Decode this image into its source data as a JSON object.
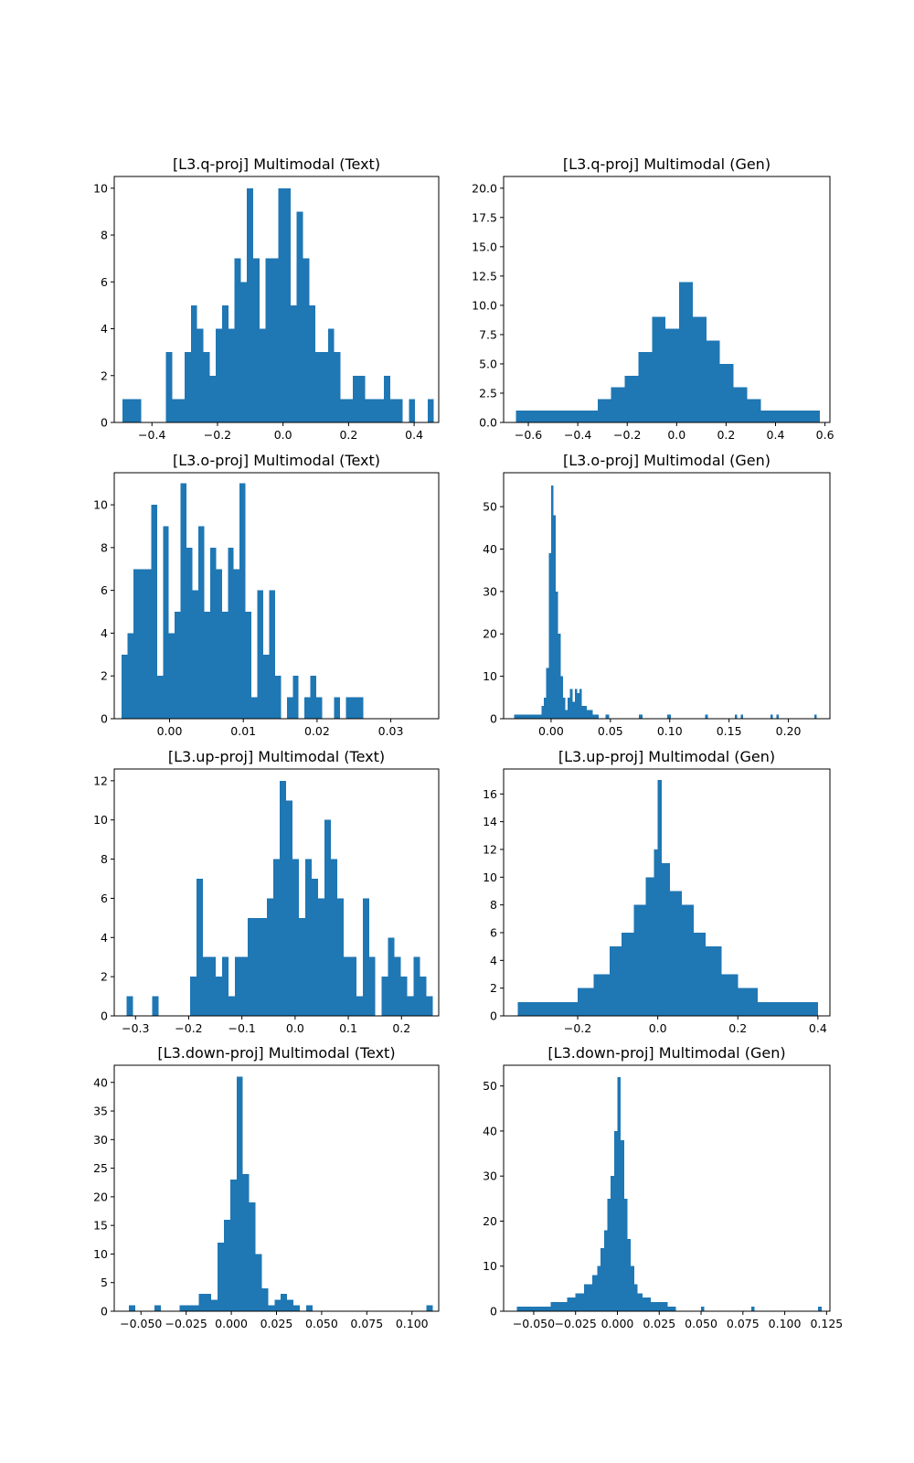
{
  "figure": {
    "bar_color": "#1f77b4",
    "background": "#ffffff"
  },
  "chart_data": [
    {
      "type": "bar",
      "title": "[L3.q-proj] Multimodal (Text)",
      "xlabel": "",
      "ylabel": "",
      "xlim": [
        -0.515,
        0.475
      ],
      "ylim": [
        0,
        10.5
      ],
      "xticks": [
        -0.4,
        -0.2,
        0.0,
        0.2,
        0.4
      ],
      "xtick_labels": [
        "−0.4",
        "−0.2",
        "0.0",
        "0.2",
        "0.4"
      ],
      "yticks": [
        0,
        2,
        4,
        6,
        8,
        10
      ],
      "ytick_labels": [
        "0",
        "2",
        "4",
        "6",
        "8",
        "10"
      ],
      "bin_edges": [
        -0.49,
        -0.471,
        -0.452,
        -0.433,
        -0.414,
        -0.395,
        -0.376,
        -0.357,
        -0.338,
        -0.319,
        -0.3,
        -0.281,
        -0.262,
        -0.243,
        -0.224,
        -0.205,
        -0.186,
        -0.167,
        -0.148,
        -0.129,
        -0.11,
        -0.091,
        -0.072,
        -0.053,
        -0.034,
        -0.015,
        0.004,
        0.023,
        0.042,
        0.061,
        0.08,
        0.099,
        0.118,
        0.137,
        0.156,
        0.175,
        0.194,
        0.213,
        0.232,
        0.251,
        0.27,
        0.289,
        0.308,
        0.327,
        0.346,
        0.365,
        0.384,
        0.403,
        0.422,
        0.441,
        0.46
      ],
      "counts": [
        1,
        1,
        1,
        0,
        0,
        0,
        0,
        3,
        1,
        1,
        3,
        5,
        4,
        3,
        2,
        4,
        5,
        4,
        7,
        6,
        10,
        7,
        4,
        7,
        7,
        10,
        10,
        5,
        9,
        7,
        5,
        3,
        3,
        4,
        3,
        1,
        1,
        2,
        2,
        1,
        1,
        1,
        2,
        1,
        1,
        0,
        1,
        0,
        0,
        1
      ]
    },
    {
      "type": "bar",
      "title": "[L3.q-proj] Multimodal (Gen)",
      "xlabel": "",
      "ylabel": "",
      "xlim": [
        -0.7,
        0.62
      ],
      "ylim": [
        0,
        21
      ],
      "xticks": [
        -0.6,
        -0.4,
        -0.2,
        0.0,
        0.2,
        0.4,
        0.6
      ],
      "xtick_labels": [
        "−0.6",
        "−0.4",
        "−0.2",
        "0.0",
        "0.2",
        "0.4",
        "0.6"
      ],
      "yticks": [
        0.0,
        2.5,
        5.0,
        7.5,
        10.0,
        12.5,
        15.0,
        17.5,
        20.0
      ],
      "ytick_labels": [
        "0.0",
        "2.5",
        "5.0",
        "7.5",
        "10.0",
        "12.5",
        "15.0",
        "17.5",
        "20.0"
      ],
      "bin_edges": [
        -0.65,
        -0.595,
        -0.54,
        -0.485,
        -0.43,
        -0.375,
        -0.32,
        -0.265,
        -0.21,
        -0.155,
        -0.1,
        -0.045,
        0.01,
        0.065,
        0.12,
        0.175,
        0.23,
        0.285,
        0.34,
        0.395,
        0.45,
        0.505,
        0.56,
        0.58
      ],
      "counts": [
        1,
        1,
        1,
        1,
        1,
        1,
        2,
        3,
        4,
        6,
        9,
        8,
        12,
        9,
        7,
        5,
        3,
        2,
        1,
        1,
        1,
        1,
        1
      ]
    },
    {
      "type": "bar",
      "title": "[L3.o-proj] Multimodal (Text)",
      "xlabel": "",
      "ylabel": "",
      "xlim": [
        -0.0075,
        0.0365
      ],
      "ylim": [
        0,
        11.5
      ],
      "xticks": [
        0.0,
        0.01,
        0.02,
        0.03
      ],
      "xtick_labels": [
        "0.00",
        "0.01",
        "0.02",
        "0.03"
      ],
      "yticks": [
        0,
        2,
        4,
        6,
        8,
        10
      ],
      "ytick_labels": [
        "0",
        "2",
        "4",
        "6",
        "8",
        "10"
      ],
      "bin_edges": [
        -0.0065,
        -0.0057,
        -0.0049,
        -0.0041,
        -0.0033,
        -0.0025,
        -0.0017,
        -0.0009,
        -0.0001,
        0.0007,
        0.0015,
        0.0023,
        0.0031,
        0.0039,
        0.0047,
        0.0055,
        0.0063,
        0.0071,
        0.0079,
        0.0087,
        0.0095,
        0.0103,
        0.0111,
        0.0119,
        0.0127,
        0.0135,
        0.0143,
        0.0151,
        0.0159,
        0.0167,
        0.0175,
        0.0183,
        0.0191,
        0.0199,
        0.0207,
        0.0215,
        0.0223,
        0.0231,
        0.0239,
        0.0247,
        0.0255,
        0.0263,
        0.0271,
        0.0279,
        0.0287,
        0.0295,
        0.0303,
        0.0311,
        0.0319,
        0.0327,
        0.0335
      ],
      "counts": [
        3,
        4,
        7,
        7,
        7,
        10,
        2,
        9,
        4,
        5,
        11,
        8,
        6,
        9,
        5,
        8,
        7,
        5,
        8,
        7,
        11,
        5,
        1,
        6,
        3,
        6,
        2,
        0,
        1,
        2,
        0,
        1,
        2,
        1,
        0,
        0,
        1,
        0,
        1,
        1,
        1,
        0,
        0,
        0,
        0,
        0,
        0,
        0,
        0,
        0,
        1
      ]
    },
    {
      "type": "bar",
      "title": "[L3.o-proj] Multimodal (Gen)",
      "xlabel": "",
      "ylabel": "",
      "xlim": [
        -0.04,
        0.235
      ],
      "ylim": [
        0,
        58
      ],
      "xticks": [
        0.0,
        0.05,
        0.1,
        0.15,
        0.2
      ],
      "xtick_labels": [
        "0.00",
        "0.05",
        "0.10",
        "0.15",
        "0.20"
      ],
      "yticks": [
        0,
        10,
        20,
        30,
        40,
        50
      ],
      "ytick_labels": [
        "0",
        "10",
        "20",
        "30",
        "40",
        "50"
      ],
      "bin_edges": [
        -0.031,
        -0.008,
        -0.006,
        -0.004,
        -0.002,
        0.0,
        0.002,
        0.004,
        0.006,
        0.008,
        0.01,
        0.012,
        0.014,
        0.016,
        0.018,
        0.02,
        0.022,
        0.024,
        0.026,
        0.03,
        0.035,
        0.04,
        0.046,
        0.049,
        0.074,
        0.077,
        0.098,
        0.101,
        0.13,
        0.132,
        0.155,
        0.157,
        0.16,
        0.162,
        0.185,
        0.187,
        0.19,
        0.192,
        0.222,
        0.224
      ],
      "counts": [
        1,
        3,
        5,
        12,
        39,
        55,
        48,
        30,
        20,
        10,
        5,
        2,
        5,
        7,
        4,
        7,
        6,
        7,
        3,
        2,
        1,
        0,
        1,
        0,
        1,
        0,
        1,
        0,
        1,
        0,
        1,
        0,
        1,
        0,
        1,
        0,
        1,
        0,
        1
      ]
    },
    {
      "type": "bar",
      "title": "[L3.up-proj] Multimodal (Text)",
      "xlabel": "",
      "ylabel": "",
      "xlim": [
        -0.34,
        0.27
      ],
      "ylim": [
        0,
        12.6
      ],
      "xticks": [
        -0.3,
        -0.2,
        -0.1,
        0.0,
        0.1,
        0.2
      ],
      "xtick_labels": [
        "−0.3",
        "−0.2",
        "−0.1",
        "0.0",
        "0.1",
        "0.2"
      ],
      "yticks": [
        0,
        2,
        4,
        6,
        8,
        10,
        12
      ],
      "ytick_labels": [
        "0",
        "2",
        "4",
        "6",
        "8",
        "10",
        "12"
      ],
      "bin_edges": [
        -0.317,
        -0.305,
        -0.293,
        -0.281,
        -0.269,
        -0.257,
        -0.245,
        -0.233,
        -0.221,
        -0.209,
        -0.197,
        -0.185,
        -0.173,
        -0.161,
        -0.149,
        -0.137,
        -0.125,
        -0.113,
        -0.101,
        -0.089,
        -0.077,
        -0.065,
        -0.053,
        -0.041,
        -0.029,
        -0.017,
        -0.005,
        0.007,
        0.019,
        0.031,
        0.043,
        0.055,
        0.067,
        0.079,
        0.091,
        0.103,
        0.115,
        0.127,
        0.139,
        0.151,
        0.163,
        0.175,
        0.187,
        0.199,
        0.211,
        0.223,
        0.235,
        0.247,
        0.259
      ],
      "counts": [
        1,
        0,
        0,
        0,
        1,
        0,
        0,
        0,
        0,
        0,
        2,
        7,
        3,
        3,
        2,
        3,
        1,
        3,
        3,
        5,
        5,
        5,
        6,
        8,
        12,
        11,
        8,
        5,
        8,
        7,
        6,
        10,
        8,
        6,
        3,
        3,
        1,
        6,
        3,
        0,
        2,
        4,
        3,
        2,
        1,
        3,
        2,
        1
      ]
    },
    {
      "type": "bar",
      "title": "[L3.up-proj] Multimodal (Gen)",
      "xlabel": "",
      "ylabel": "",
      "xlim": [
        -0.385,
        0.43
      ],
      "ylim": [
        0,
        17.8
      ],
      "xticks": [
        -0.2,
        0.0,
        0.2,
        0.4
      ],
      "xtick_labels": [
        "−0.2",
        "0.0",
        "0.2",
        "0.4"
      ],
      "yticks": [
        0,
        2,
        4,
        6,
        8,
        10,
        12,
        14,
        16
      ],
      "ytick_labels": [
        "0",
        "2",
        "4",
        "6",
        "8",
        "10",
        "12",
        "14",
        "16"
      ],
      "bin_edges": [
        -0.35,
        -0.3,
        -0.25,
        -0.2,
        -0.16,
        -0.12,
        -0.09,
        -0.06,
        -0.03,
        -0.01,
        0.0,
        0.01,
        0.03,
        0.06,
        0.09,
        0.12,
        0.16,
        0.2,
        0.25,
        0.3,
        0.35,
        0.4
      ],
      "counts": [
        1,
        1,
        1,
        2,
        3,
        5,
        6,
        8,
        10,
        12,
        17,
        11,
        9,
        8,
        6,
        5,
        3,
        2,
        1,
        1,
        1
      ]
    },
    {
      "type": "bar",
      "title": "[L3.down-proj] Multimodal (Text)",
      "xlabel": "",
      "ylabel": "",
      "xlim": [
        -0.0648,
        0.1148
      ],
      "ylim": [
        0,
        43
      ],
      "xticks": [
        -0.05,
        -0.025,
        0.0,
        0.025,
        0.05,
        0.075,
        0.1
      ],
      "xtick_labels": [
        "−0.050",
        "−0.025",
        "0.000",
        "0.025",
        "0.050",
        "0.075",
        "0.100"
      ],
      "yticks": [
        0,
        5,
        10,
        15,
        20,
        25,
        30,
        35,
        40
      ],
      "ytick_labels": [
        "0",
        "5",
        "10",
        "15",
        "20",
        "25",
        "30",
        "35",
        "40"
      ],
      "bin_edges": [
        -0.0566,
        -0.0531,
        -0.0496,
        -0.0461,
        -0.0426,
        -0.0391,
        -0.0356,
        -0.0321,
        -0.0286,
        -0.0251,
        -0.0216,
        -0.0181,
        -0.0146,
        -0.0111,
        -0.0076,
        -0.0041,
        -0.0006,
        0.0029,
        0.0064,
        0.0099,
        0.0134,
        0.0169,
        0.0204,
        0.0239,
        0.0274,
        0.0309,
        0.0344,
        0.0379,
        0.0414,
        0.0449,
        0.0484,
        0.0519,
        0.0554,
        0.0589,
        0.0624,
        0.0659,
        0.0694,
        0.0729,
        0.0764,
        0.0799,
        0.0834,
        0.0869,
        0.0904,
        0.0939,
        0.0974,
        0.1009,
        0.1044,
        0.1079,
        0.1114
      ],
      "counts": [
        1,
        0,
        0,
        0,
        1,
        0,
        0,
        0,
        1,
        1,
        1,
        3,
        3,
        2,
        12,
        16,
        23,
        41,
        24,
        19,
        10,
        4,
        1,
        2,
        3,
        2,
        1,
        0,
        1,
        0,
        0,
        0,
        0,
        0,
        0,
        0,
        0,
        0,
        0,
        0,
        0,
        0,
        0,
        0,
        0,
        0,
        0,
        1
      ]
    },
    {
      "type": "bar",
      "title": "[L3.down-proj] Multimodal (Gen)",
      "xlabel": "",
      "ylabel": "",
      "xlim": [
        -0.068,
        0.127
      ],
      "ylim": [
        0,
        54.6
      ],
      "xticks": [
        -0.05,
        -0.025,
        0.0,
        0.025,
        0.05,
        0.075,
        0.1,
        0.125
      ],
      "xtick_labels": [
        "−0.050",
        "−0.025",
        "0.000",
        "0.025",
        "0.050",
        "0.075",
        "0.100",
        "0.125"
      ],
      "yticks": [
        0,
        10,
        20,
        30,
        40,
        50
      ],
      "ytick_labels": [
        "0",
        "10",
        "20",
        "30",
        "40",
        "50"
      ],
      "bin_edges": [
        -0.06,
        -0.05,
        -0.04,
        -0.03,
        -0.025,
        -0.02,
        -0.015,
        -0.012,
        -0.01,
        -0.008,
        -0.006,
        -0.004,
        -0.002,
        0.0,
        0.002,
        0.004,
        0.006,
        0.008,
        0.01,
        0.012,
        0.015,
        0.02,
        0.025,
        0.03,
        0.035,
        0.05,
        0.052,
        0.08,
        0.082,
        0.12,
        0.122
      ],
      "counts": [
        1,
        1,
        2,
        3,
        4,
        6,
        8,
        10,
        14,
        18,
        25,
        30,
        40,
        52,
        38,
        25,
        16,
        10,
        6,
        4,
        3,
        2,
        2,
        1,
        0,
        1,
        0,
        1,
        0,
        1
      ]
    }
  ]
}
